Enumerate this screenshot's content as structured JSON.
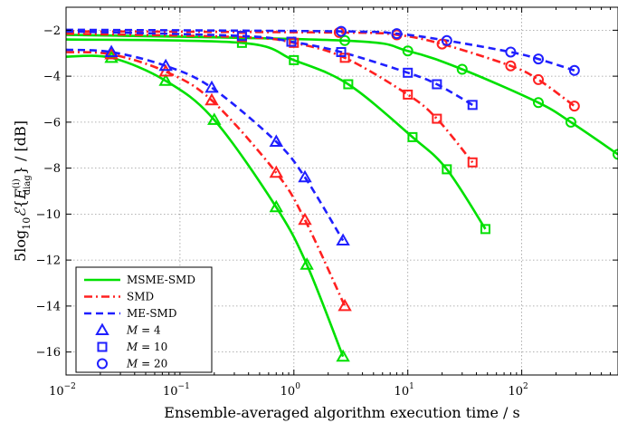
{
  "chart_data": {
    "type": "line",
    "xscale": "log",
    "xlim": [
      0.01,
      700
    ],
    "ylim": [
      -17,
      -1
    ],
    "grid": true,
    "legend_position": "bottom-left",
    "xlabel": "Ensemble-averaged algorithm execution time / s",
    "ylabel": "5log₁₀𝓔{E_diag^(i)} / [dB]",
    "ylabel_parts": {
      "prefix": "5log",
      "sub10": "10",
      "script_e": "ℰ",
      "open_brace": "{",
      "e_var": "E",
      "sup": "(i)",
      "sub_diag": "diag",
      "close_brace": "}",
      "suffix": " / [dB]"
    },
    "x_ticks": [
      {
        "value": 0.01,
        "base": "10",
        "exp": "−2"
      },
      {
        "value": 0.1,
        "base": "10",
        "exp": "−1"
      },
      {
        "value": 1,
        "base": "10",
        "exp": "0"
      },
      {
        "value": 10,
        "base": "10",
        "exp": "1"
      },
      {
        "value": 100,
        "base": "10",
        "exp": "2"
      }
    ],
    "y_ticks": [
      {
        "value": -2,
        "label": "−2"
      },
      {
        "value": -4,
        "label": "−4"
      },
      {
        "value": -6,
        "label": "−6"
      },
      {
        "value": -8,
        "label": "−8"
      },
      {
        "value": -10,
        "label": "−10"
      },
      {
        "value": -12,
        "label": "−12"
      },
      {
        "value": -14,
        "label": "−14"
      },
      {
        "value": -16,
        "label": "−16"
      }
    ],
    "series": [
      {
        "name": "MSME-SMD",
        "color": "#00e000",
        "dash": "solid",
        "M": 4,
        "points": [
          [
            0.01,
            -3.15
          ],
          [
            0.025,
            -3.2
          ],
          [
            0.075,
            -4.2
          ],
          [
            0.2,
            -5.9
          ],
          [
            0.7,
            -9.7
          ],
          [
            1.3,
            -12.2
          ],
          [
            2.7,
            -16.2
          ]
        ]
      },
      {
        "name": "MSME-SMD",
        "color": "#00e000",
        "dash": "solid",
        "M": 10,
        "points": [
          [
            0.01,
            -2.4
          ],
          [
            0.35,
            -2.55
          ],
          [
            1.0,
            -3.3
          ],
          [
            3.0,
            -4.35
          ],
          [
            11,
            -6.65
          ],
          [
            22,
            -8.05
          ],
          [
            48,
            -10.65
          ]
        ]
      },
      {
        "name": "MSME-SMD",
        "color": "#00e000",
        "dash": "solid",
        "M": 20,
        "points": [
          [
            0.01,
            -2.2
          ],
          [
            2.8,
            -2.45
          ],
          [
            10,
            -2.9
          ],
          [
            30,
            -3.7
          ],
          [
            140,
            -5.15
          ],
          [
            270,
            -6.0
          ],
          [
            700,
            -7.4
          ]
        ]
      },
      {
        "name": "SMD",
        "color": "#ff2020",
        "dash": "dashdot",
        "M": 4,
        "points": [
          [
            0.01,
            -2.95
          ],
          [
            0.025,
            -3.05
          ],
          [
            0.075,
            -3.8
          ],
          [
            0.19,
            -5.05
          ],
          [
            0.7,
            -8.2
          ],
          [
            1.25,
            -10.25
          ],
          [
            2.8,
            -14.0
          ]
        ]
      },
      {
        "name": "SMD",
        "color": "#ff2020",
        "dash": "dashdot",
        "M": 10,
        "points": [
          [
            0.01,
            -2.15
          ],
          [
            0.35,
            -2.3
          ],
          [
            1.0,
            -2.55
          ],
          [
            2.8,
            -3.2
          ],
          [
            10,
            -4.8
          ],
          [
            18,
            -5.85
          ],
          [
            37,
            -7.75
          ]
        ]
      },
      {
        "name": "SMD",
        "color": "#ff2020",
        "dash": "dashdot",
        "M": 20,
        "points": [
          [
            0.01,
            -2.05
          ],
          [
            2.5,
            -2.1
          ],
          [
            8,
            -2.2
          ],
          [
            20,
            -2.6
          ],
          [
            80,
            -3.55
          ],
          [
            140,
            -4.15
          ],
          [
            290,
            -5.3
          ]
        ]
      },
      {
        "name": "ME-SMD",
        "color": "#1f1fff",
        "dash": "dashed",
        "M": 4,
        "points": [
          [
            0.01,
            -2.85
          ],
          [
            0.025,
            -2.95
          ],
          [
            0.075,
            -3.55
          ],
          [
            0.19,
            -4.5
          ],
          [
            0.7,
            -6.85
          ],
          [
            1.25,
            -8.4
          ],
          [
            2.7,
            -11.15
          ]
        ]
      },
      {
        "name": "ME-SMD",
        "color": "#1f1fff",
        "dash": "dashed",
        "M": 10,
        "points": [
          [
            0.01,
            -2.05
          ],
          [
            0.35,
            -2.25
          ],
          [
            0.95,
            -2.5
          ],
          [
            2.6,
            -2.95
          ],
          [
            10,
            -3.85
          ],
          [
            18,
            -4.35
          ],
          [
            37,
            -5.25
          ]
        ]
      },
      {
        "name": "ME-SMD",
        "color": "#1f1fff",
        "dash": "dashed",
        "M": 20,
        "points": [
          [
            0.01,
            -1.98
          ],
          [
            2.6,
            -2.05
          ],
          [
            8,
            -2.15
          ],
          [
            22,
            -2.45
          ],
          [
            80,
            -2.95
          ],
          [
            140,
            -3.25
          ],
          [
            290,
            -3.75
          ]
        ]
      }
    ],
    "legend": [
      {
        "label": "MSME-SMD",
        "kind": "line",
        "color": "#00e000",
        "dash": "solid"
      },
      {
        "label": "SMD",
        "kind": "line",
        "color": "#ff2020",
        "dash": "dashdot"
      },
      {
        "label": "ME-SMD",
        "kind": "line",
        "color": "#1f1fff",
        "dash": "dashed"
      },
      {
        "label_var": "M",
        "label_eq": " = 4",
        "kind": "marker",
        "marker": "triangle",
        "color": "#1f1fff"
      },
      {
        "label_var": "M",
        "label_eq": " = 10",
        "kind": "marker",
        "marker": "square",
        "color": "#1f1fff"
      },
      {
        "label_var": "M",
        "label_eq": " = 20",
        "kind": "marker",
        "marker": "circle",
        "color": "#1f1fff"
      }
    ],
    "marker_by_M": {
      "4": "triangle",
      "10": "square",
      "20": "circle"
    }
  }
}
